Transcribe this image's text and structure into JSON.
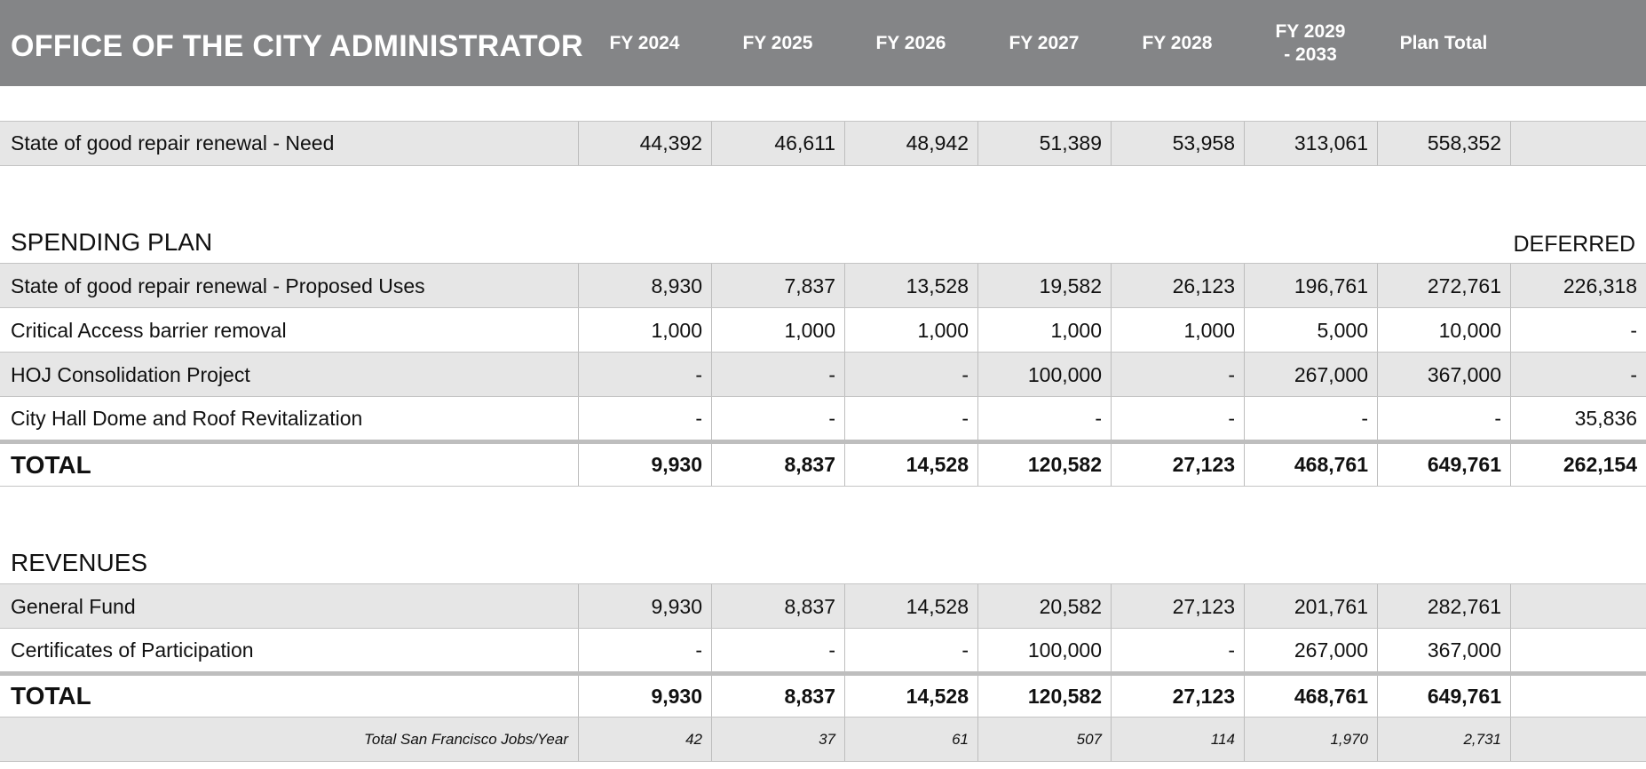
{
  "title": "OFFICE OF THE CITY ADMINISTRATOR",
  "columns": [
    "FY 2024",
    "FY 2025",
    "FY 2026",
    "FY 2027",
    "FY 2028",
    "FY 2029 - 2033",
    "Plan Total"
  ],
  "need_row": {
    "label": "State of good repair renewal - Need",
    "values": [
      "44,392",
      "46,611",
      "48,942",
      "51,389",
      "53,958",
      "313,061",
      "558,352",
      ""
    ]
  },
  "spending": {
    "heading": "SPENDING PLAN",
    "deferred_label": "DEFERRED",
    "rows": [
      {
        "label": "State of good repair renewal - Proposed Uses",
        "values": [
          "8,930",
          "7,837",
          "13,528",
          "19,582",
          "26,123",
          "196,761",
          "272,761",
          "226,318"
        ]
      },
      {
        "label": "Critical Access barrier removal",
        "values": [
          "1,000",
          "1,000",
          "1,000",
          "1,000",
          "1,000",
          "5,000",
          "10,000",
          "-"
        ]
      },
      {
        "label": "HOJ Consolidation Project",
        "values": [
          "-",
          "-",
          "-",
          "100,000",
          "-",
          "267,000",
          "367,000",
          "-"
        ]
      },
      {
        "label": "City Hall Dome and Roof Revitalization",
        "values": [
          "-",
          "-",
          "-",
          "-",
          "-",
          "-",
          "-",
          "35,836"
        ]
      }
    ],
    "total": {
      "label": "TOTAL",
      "values": [
        "9,930",
        "8,837",
        "14,528",
        "120,582",
        "27,123",
        "468,761",
        "649,761",
        "262,154"
      ]
    }
  },
  "revenues": {
    "heading": "REVENUES",
    "rows": [
      {
        "label": "General Fund",
        "values": [
          "9,930",
          "8,837",
          "14,528",
          "20,582",
          "27,123",
          "201,761",
          "282,761",
          ""
        ]
      },
      {
        "label": "Certificates of Participation",
        "values": [
          "-",
          "-",
          "-",
          "100,000",
          "-",
          "267,000",
          "367,000",
          ""
        ]
      }
    ],
    "total": {
      "label": "TOTAL",
      "values": [
        "9,930",
        "8,837",
        "14,528",
        "120,582",
        "27,123",
        "468,761",
        "649,761",
        ""
      ]
    },
    "jobs": {
      "label": "Total San Francisco Jobs/Year",
      "values": [
        "42",
        "37",
        "61",
        "507",
        "114",
        "1,970",
        "2,731",
        ""
      ]
    }
  }
}
